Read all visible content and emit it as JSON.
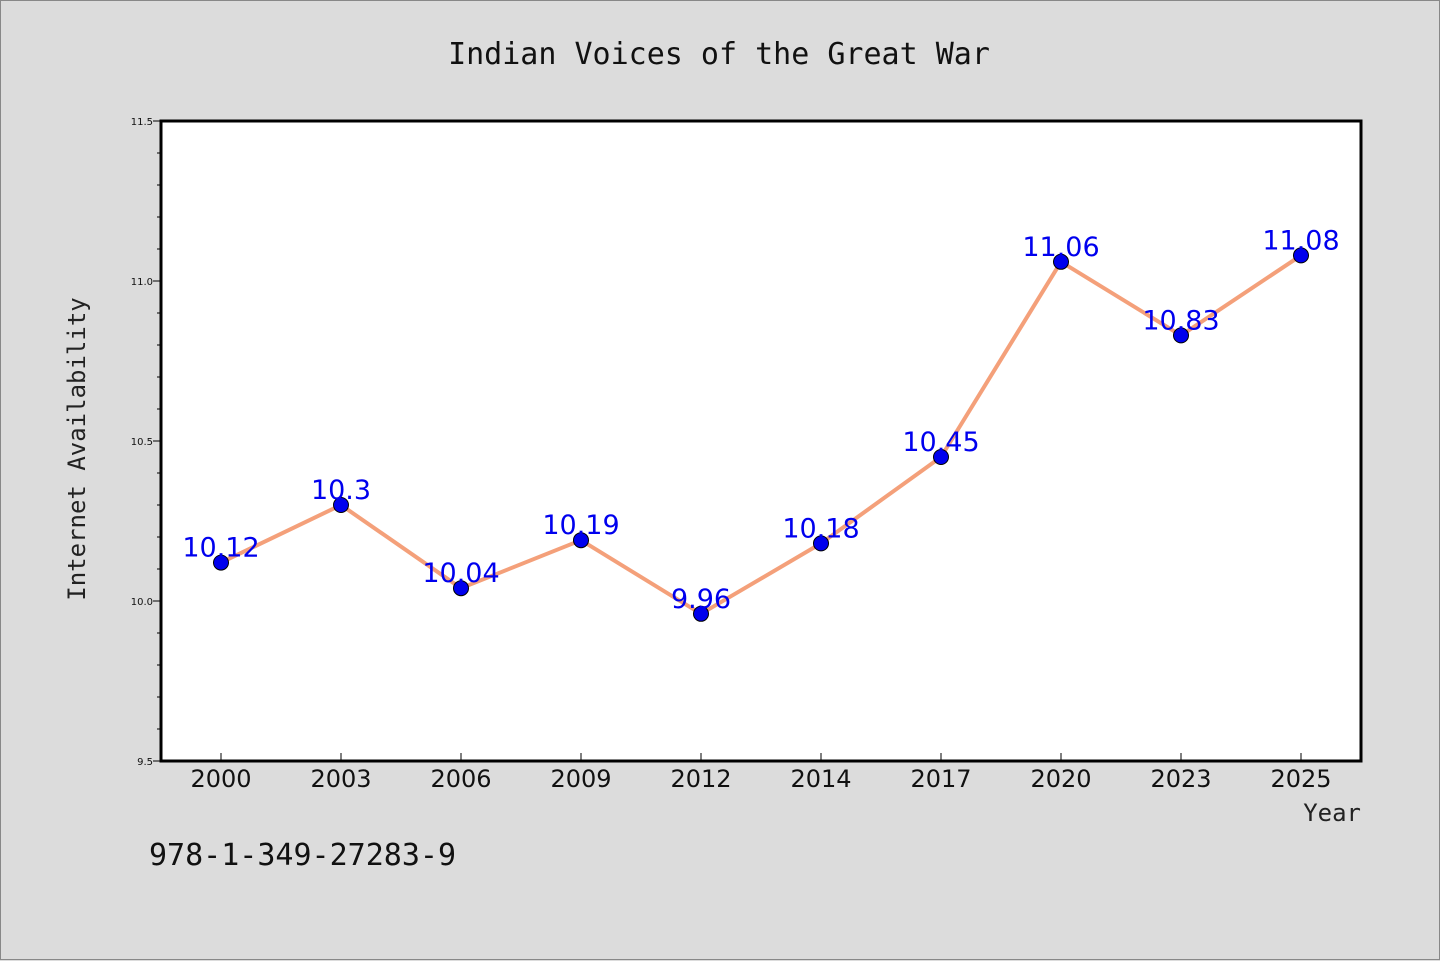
{
  "chart_data": {
    "type": "line",
    "title": "Indian Voices of the Great War",
    "xlabel": "Year",
    "ylabel": "Internet Availability",
    "categories": [
      "2000",
      "2003",
      "2006",
      "2009",
      "2012",
      "2014",
      "2017",
      "2020",
      "2023",
      "2025"
    ],
    "values": [
      10.12,
      10.3,
      10.04,
      10.19,
      9.96,
      10.18,
      10.45,
      11.06,
      10.83,
      11.08
    ],
    "data_labels": [
      "10.12",
      "10.3",
      "10.04",
      "10.19",
      "9.96",
      "10.18",
      "10.45",
      "11.06",
      "10.83",
      "11.08"
    ],
    "ylim": [
      9.5,
      11.5
    ],
    "yticks": [
      "9.5",
      "10.0",
      "10.5",
      "11.0",
      "11.5"
    ],
    "grid": false,
    "legend": false,
    "colors": {
      "line": "#f4a07a",
      "marker": "#0000ee",
      "label": "#0000ee",
      "background": "#dcdcdc",
      "plot_area": "#ffffff"
    }
  },
  "footer_text": "978-1-349-27283-9"
}
